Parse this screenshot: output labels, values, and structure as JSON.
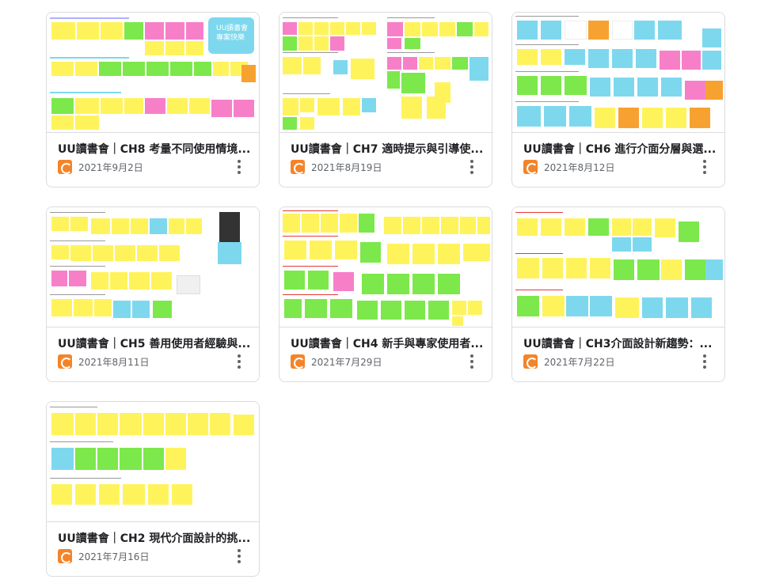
{
  "cards": [
    {
      "title": "UU讀書會｜CH8 考量不同使用情境...",
      "date": "2021年9月2日",
      "badge": "UU讀書會\n專案快樂"
    },
    {
      "title": "UU讀書會｜CH7 適時提示與引導使...",
      "date": "2021年8月19日"
    },
    {
      "title": "UU讀書會｜CH6 進行介面分層與選...",
      "date": "2021年8月12日"
    },
    {
      "title": "UU讀書會｜CH5 善用使用者經驗與...",
      "date": "2021年8月11日"
    },
    {
      "title": "UU讀書會｜CH4 新手與專家使用者...",
      "date": "2021年7月29日"
    },
    {
      "title": "UU讀書會｜CH3介面設計新趨勢：...",
      "date": "2021年7月22日"
    },
    {
      "title": "UU讀書會｜CH2 現代介面設計的挑...",
      "date": "2021年7月16日"
    }
  ],
  "colors": {
    "yellow": "#fff35c",
    "green": "#7ce84b",
    "pink": "#f77fc8",
    "blue": "#7dd8ee",
    "orange": "#f7a230",
    "red": "#e53935"
  }
}
